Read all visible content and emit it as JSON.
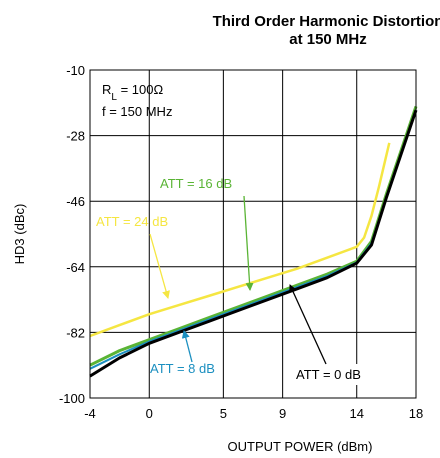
{
  "chart_data": {
    "type": "line",
    "title": [
      "Third Order Harmonic Distortion",
      "at 150 MHz"
    ],
    "xlabel": "OUTPUT POWER (dBm)",
    "ylabel": "HD3  (dBc)",
    "xlim": [
      -4,
      18
    ],
    "xticks": [
      -4,
      0,
      5,
      9,
      14,
      18
    ],
    "ylim": [
      -100,
      -10
    ],
    "yticks": [
      -10,
      -28,
      -46,
      -64,
      -82,
      -100
    ],
    "grid": true,
    "conditions": {
      "resistor": "R",
      "resistor_subscript": "L",
      "resistor_value": " = 100Ω",
      "frequency": "f = 150 MHz"
    },
    "series": [
      {
        "name": "ATT = 24 dB",
        "color": "#f5e642",
        "x": [
          -4,
          -2,
          0,
          2,
          4,
          6,
          8,
          10,
          12,
          14,
          14.5,
          15,
          15.5,
          16.2
        ],
        "values": [
          -83,
          -80,
          -77,
          -74.5,
          -72,
          -69.5,
          -67,
          -64.5,
          -61.5,
          -58.5,
          -56,
          -50,
          -42,
          -30
        ]
      },
      {
        "name": "ATT = 16 dB",
        "color": "#5ab435",
        "x": [
          -4,
          -2,
          0,
          2,
          4,
          6,
          8,
          10,
          12,
          14,
          15,
          16,
          17,
          18
        ],
        "values": [
          -91,
          -87,
          -84,
          -81,
          -78,
          -75,
          -72,
          -69,
          -66,
          -62.5,
          -57,
          -44,
          -32,
          -20
        ]
      },
      {
        "name": "ATT = 8 dB",
        "color": "#1b8fc0",
        "x": [
          -4,
          -2,
          0,
          2,
          4,
          6,
          8,
          10,
          12,
          14,
          15,
          16,
          17,
          18
        ],
        "values": [
          -92,
          -88,
          -84.5,
          -81.5,
          -78.5,
          -75.5,
          -72.5,
          -69.5,
          -66.5,
          -62.8,
          -57.5,
          -45,
          -33,
          -21
        ]
      },
      {
        "name": "ATT = 0 dB",
        "color": "#000000",
        "x": [
          -4,
          -2,
          0,
          2,
          4,
          6,
          8,
          10,
          12,
          14,
          15,
          16,
          17,
          18
        ],
        "values": [
          -94,
          -89,
          -85,
          -82,
          -79,
          -76,
          -73,
          -70,
          -67,
          -63,
          -58,
          -45,
          -33,
          -21
        ]
      }
    ]
  }
}
